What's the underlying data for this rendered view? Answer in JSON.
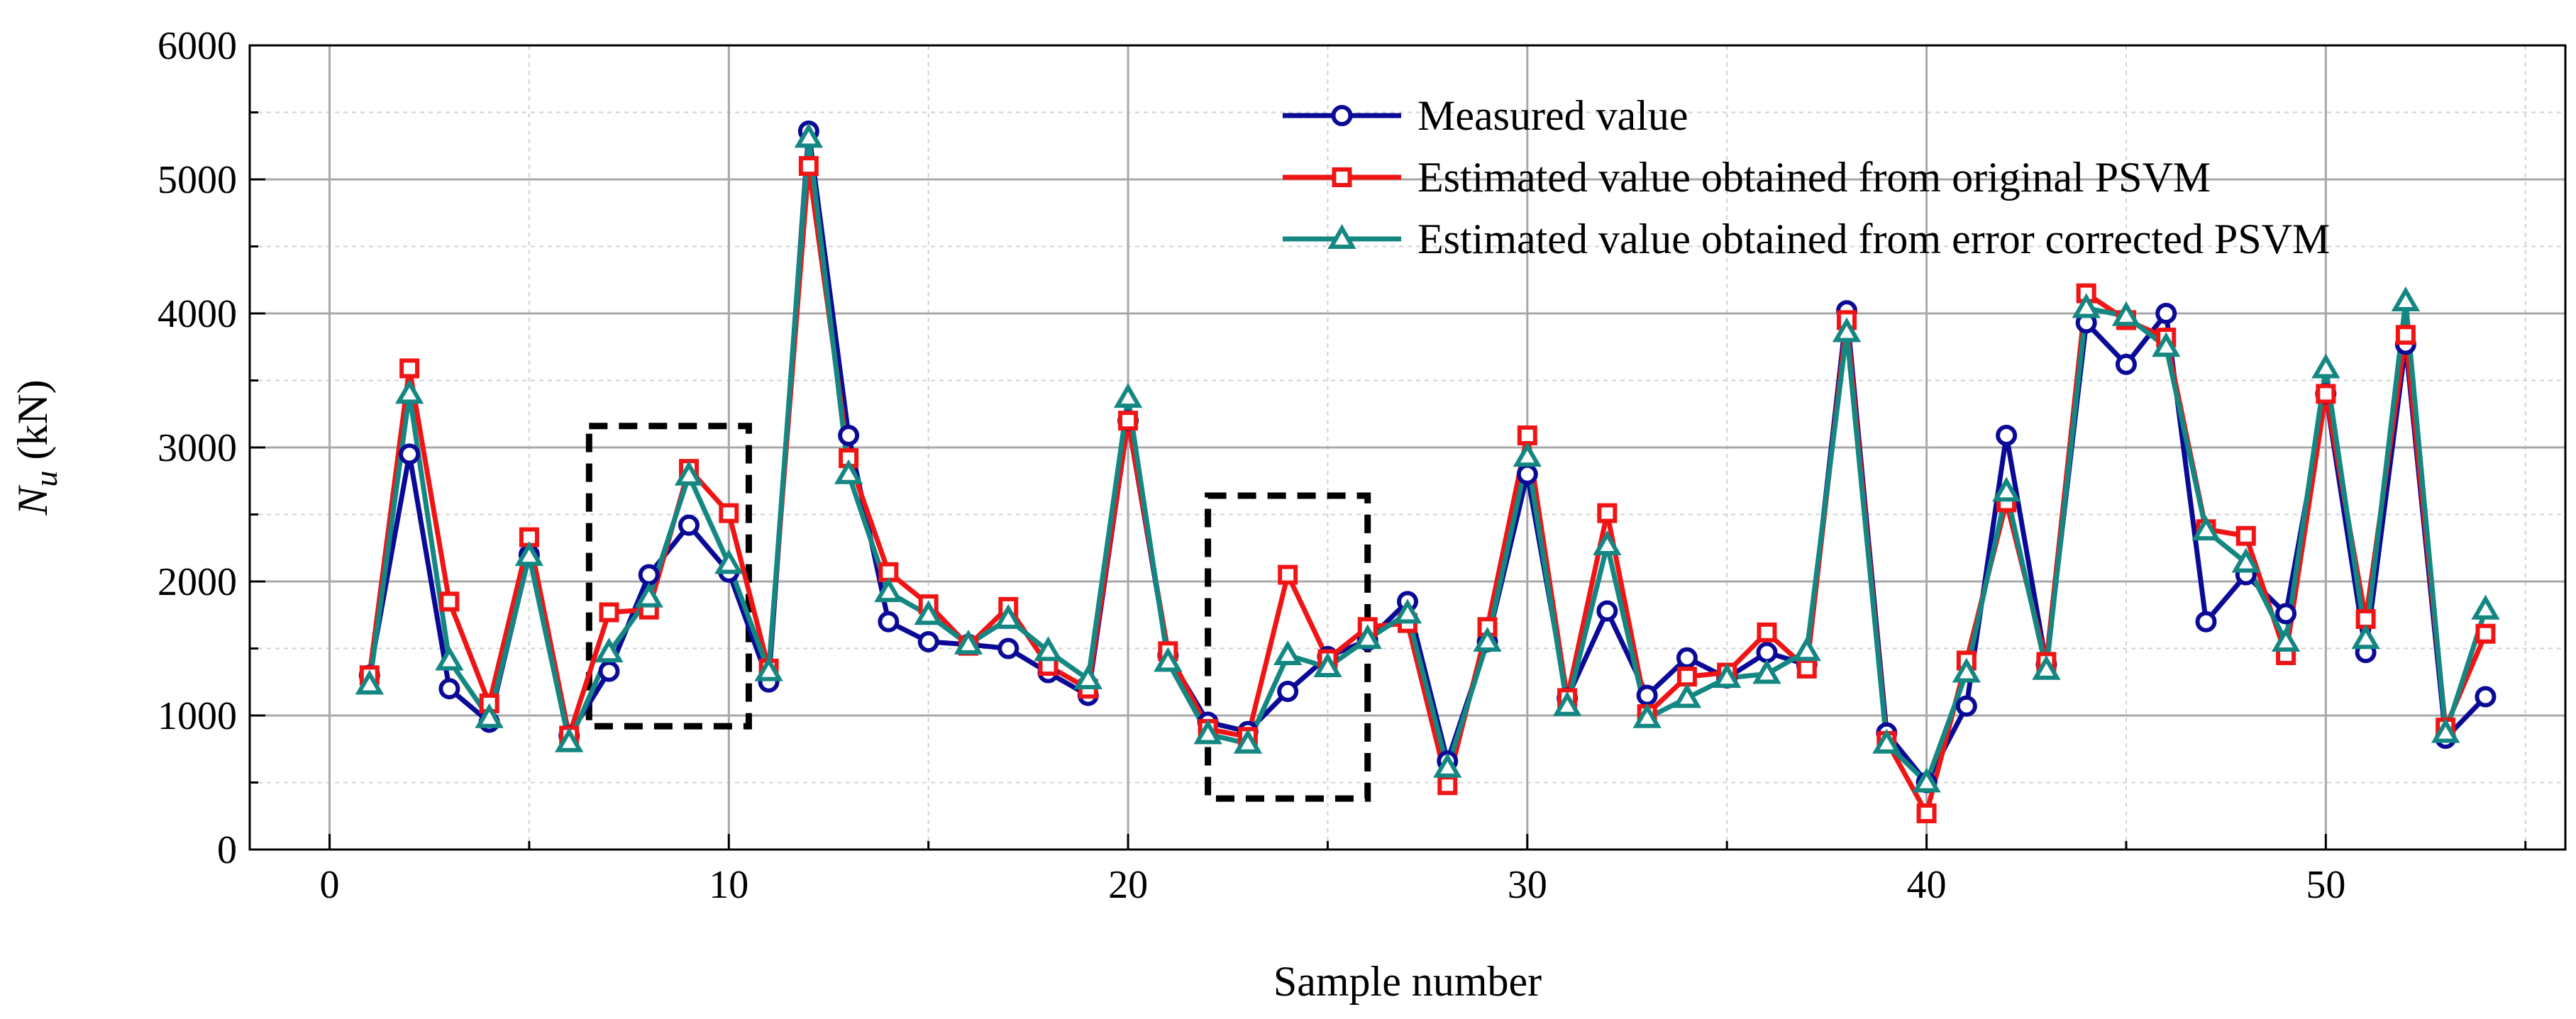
{
  "chart_data": {
    "type": "line",
    "title": "",
    "xlabel": "Sample number",
    "ylabel": {
      "base": "N",
      "sub": "u",
      "unit": " (kN)"
    },
    "xlim": [
      -2,
      56
    ],
    "ylim": [
      0,
      6000
    ],
    "x_ticks": [
      0,
      10,
      20,
      30,
      40,
      50
    ],
    "y_ticks": [
      0,
      1000,
      2000,
      3000,
      4000,
      5000,
      6000
    ],
    "grid": true,
    "legend_position": "top-right",
    "x": [
      1,
      2,
      3,
      4,
      5,
      6,
      7,
      8,
      9,
      10,
      11,
      12,
      13,
      14,
      15,
      16,
      17,
      18,
      19,
      20,
      21,
      22,
      23,
      24,
      25,
      26,
      27,
      28,
      29,
      30,
      31,
      32,
      33,
      34,
      35,
      36,
      37,
      38,
      39,
      40,
      41,
      42,
      43,
      44,
      45,
      46,
      47,
      48,
      49,
      50,
      51,
      52,
      53,
      54
    ],
    "series": [
      {
        "name": "Measured value",
        "color": "#0a0a96",
        "marker": "circle",
        "values": [
          1300,
          2950,
          1200,
          950,
          2200,
          850,
          1330,
          2050,
          2420,
          2070,
          1250,
          5360,
          3090,
          1700,
          1550,
          1530,
          1500,
          1320,
          1150,
          3200,
          1450,
          950,
          880,
          1180,
          1440,
          1560,
          1850,
          660,
          1550,
          2800,
          1130,
          1780,
          1150,
          1430,
          1280,
          1470,
          1380,
          4020,
          870,
          500,
          1070,
          3090,
          1380,
          3930,
          3620,
          4000,
          1700,
          2050,
          1760,
          3400,
          1470,
          3770,
          830,
          1140
        ]
      },
      {
        "name": "Estimated value obtained from original PSVM",
        "color": "#f01414",
        "marker": "square",
        "values": [
          1300,
          3590,
          1850,
          1090,
          2330,
          850,
          1770,
          1790,
          2840,
          2510,
          1350,
          5100,
          2920,
          2070,
          1830,
          1520,
          1810,
          1370,
          1200,
          3200,
          1480,
          900,
          840,
          2050,
          1420,
          1660,
          1690,
          480,
          1660,
          3090,
          1130,
          2510,
          1010,
          1290,
          1320,
          1620,
          1350,
          3950,
          810,
          270,
          1410,
          2590,
          1400,
          4150,
          3950,
          3820,
          2390,
          2340,
          1450,
          3400,
          1720,
          3840,
          910,
          1610
        ]
      },
      {
        "name": "Estimated value obtained from error corrected PSVM",
        "color": "#148782",
        "marker": "triangle",
        "values": [
          1230,
          3400,
          1410,
          980,
          2190,
          800,
          1470,
          1880,
          2790,
          2130,
          1330,
          5310,
          2800,
          1920,
          1750,
          1530,
          1720,
          1480,
          1270,
          3370,
          1400,
          860,
          790,
          1450,
          1360,
          1570,
          1760,
          610,
          1550,
          2930,
          1070,
          2270,
          980,
          1130,
          1280,
          1310,
          1480,
          3860,
          790,
          500,
          1320,
          2670,
          1340,
          4040,
          3980,
          3750,
          2380,
          2140,
          1550,
          3590,
          1570,
          4090,
          870,
          1790
        ]
      }
    ],
    "annotations": [
      {
        "type": "dashed-box",
        "x_range": [
          6.5,
          10.5
        ],
        "y_range": [
          920,
          3160
        ]
      },
      {
        "type": "dashed-box",
        "x_range": [
          22,
          26
        ],
        "y_range": [
          380,
          2640
        ]
      }
    ]
  }
}
